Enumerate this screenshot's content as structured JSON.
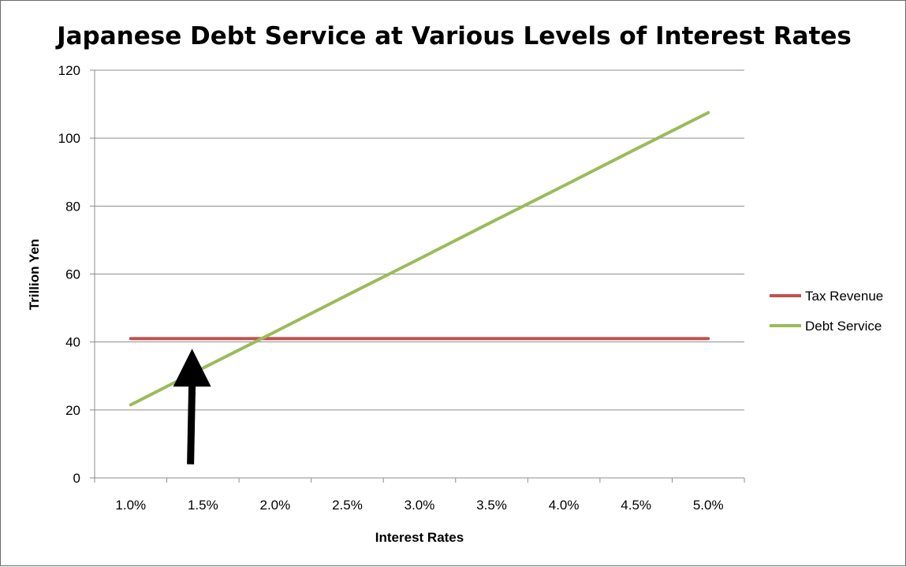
{
  "chart_data": {
    "type": "line",
    "title": "Japanese Debt Service at Various Levels of Interest Rates",
    "xlabel": "Interest Rates",
    "ylabel": "Trillion Yen",
    "categories": [
      "1.0%",
      "1.5%",
      "2.0%",
      "2.5%",
      "3.0%",
      "3.5%",
      "4.0%",
      "4.5%",
      "5.0%"
    ],
    "ylim": [
      0,
      120
    ],
    "yticks": [
      0,
      20,
      40,
      60,
      80,
      100,
      120
    ],
    "grid": "horizontal major gridlines",
    "legend_position": "right",
    "series": [
      {
        "name": "Tax Revenue",
        "color": "#c0504d",
        "values": [
          41,
          41,
          41,
          41,
          41,
          41,
          41,
          41,
          41
        ]
      },
      {
        "name": "Debt Service",
        "color": "#9bbb59",
        "values": [
          21.5,
          32.3,
          43.0,
          53.8,
          64.5,
          75.3,
          86.0,
          96.8,
          107.5
        ]
      }
    ],
    "annotations": [
      {
        "type": "arrow",
        "color": "#000000",
        "points_to": "intersection of Tax Revenue and Debt Service near 1.9%",
        "x_category_position": 1.85,
        "tip_value": 38,
        "tail_value": 4
      }
    ]
  }
}
